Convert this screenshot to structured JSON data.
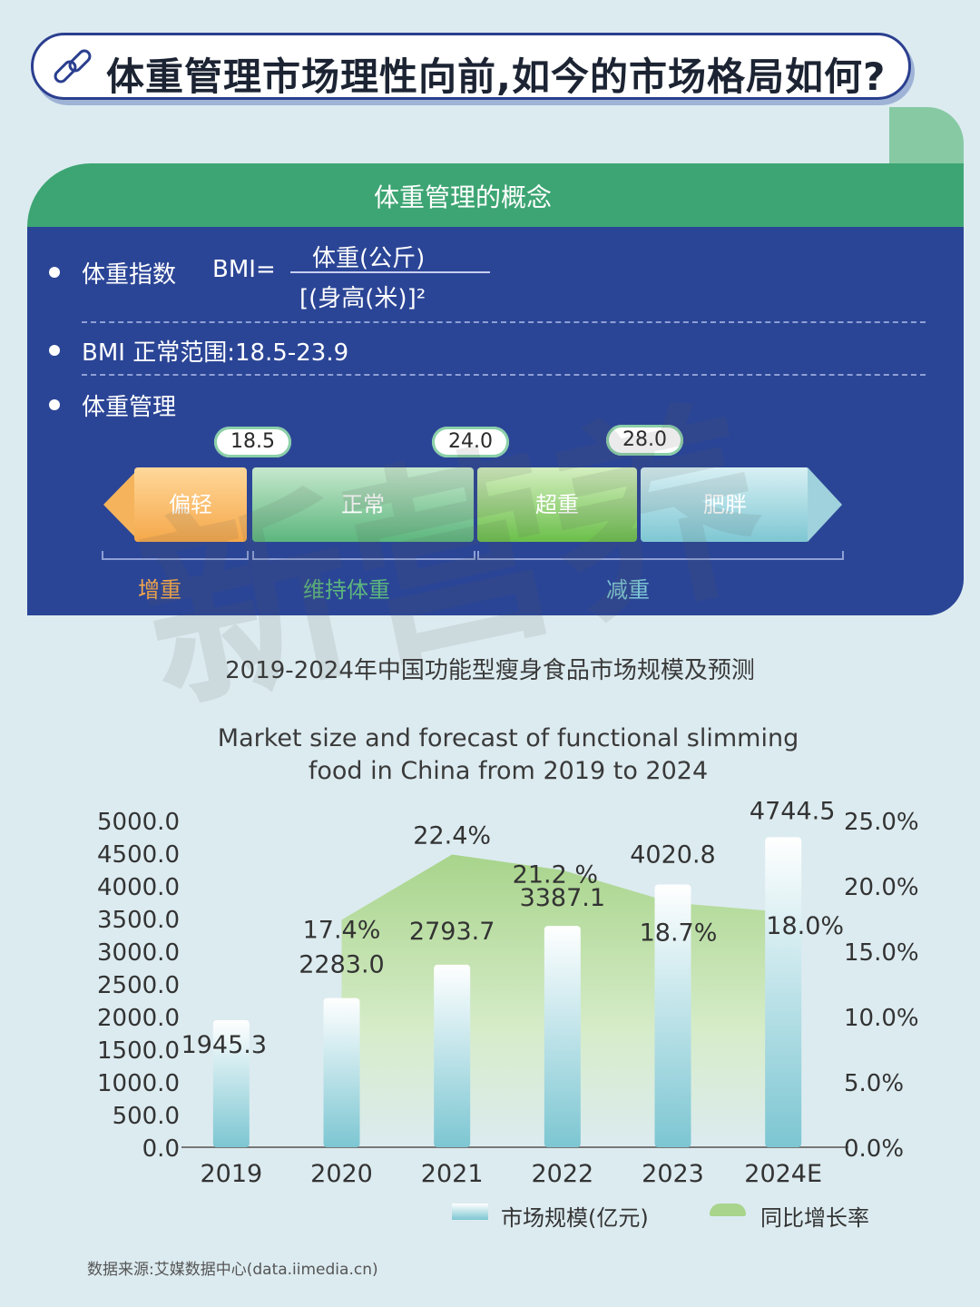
{
  "header": {
    "title": "体重管理市场理性向前,如今的市场格局如何?"
  },
  "concept": {
    "title": "体重管理的概念",
    "bmi_label": "体重指数",
    "bmi_eq": "BMI=",
    "bmi_numerator": "体重(公斤)",
    "bmi_denominator": "[(身高(米)]²",
    "normal_range": "BMI 正常范围:18.5-23.9",
    "management_label": "体重管理",
    "thresholds": [
      "18.5",
      "24.0",
      "28.0"
    ],
    "categories": [
      "偏轻",
      "正常",
      "超重",
      "肥胖"
    ],
    "goals": [
      "增重",
      "维持体重",
      "减重"
    ]
  },
  "watermark": "新营养",
  "chart_data": {
    "type": "bar",
    "title": "2019-2024年中国功能型瘦身食品市场规模及预测",
    "subtitle_en_line1": "Market size and forecast of functional slimming",
    "subtitle_en_line2": "food in China from 2019 to 2024",
    "categories": [
      "2019",
      "2020",
      "2021",
      "2022",
      "2023",
      "2024E"
    ],
    "series": [
      {
        "name": "市场规模(亿元)",
        "type": "bar",
        "axis": "left",
        "values": [
          1945.3,
          2283.0,
          2793.7,
          3387.1,
          4020.8,
          4744.5
        ],
        "labels": [
          "1945.3",
          "2283.0",
          "2793.7",
          "3387.1",
          "4020.8",
          "4744.5"
        ]
      },
      {
        "name": "同比增长率",
        "type": "area",
        "axis": "right",
        "values": [
          null,
          17.4,
          22.4,
          21.2,
          18.7,
          18.0
        ],
        "labels": [
          "",
          "17.4%",
          "22.4%",
          "21.2 %",
          "18.7%",
          "18.0%"
        ]
      }
    ],
    "left_axis": {
      "min": 0,
      "max": 5000,
      "ticks": [
        "0.0",
        "500.0",
        "1000.0",
        "1500.0",
        "2000.0",
        "2500.0",
        "3000.0",
        "3500.0",
        "4000.0",
        "4500.0",
        "5000.0"
      ]
    },
    "right_axis": {
      "min": 0,
      "max": 25,
      "ticks": [
        "0.0%",
        "5.0%",
        "10.0%",
        "15.0%",
        "20.0%",
        "25.0%"
      ]
    },
    "grid": false,
    "legend": "bottom"
  },
  "source": "数据来源:艾媒数据中心(data.iimedia.cn)",
  "colors": {
    "navy": "#2b4596",
    "green": "#3da573",
    "bar": "#7cc6d2",
    "area": "#a8d48b"
  }
}
